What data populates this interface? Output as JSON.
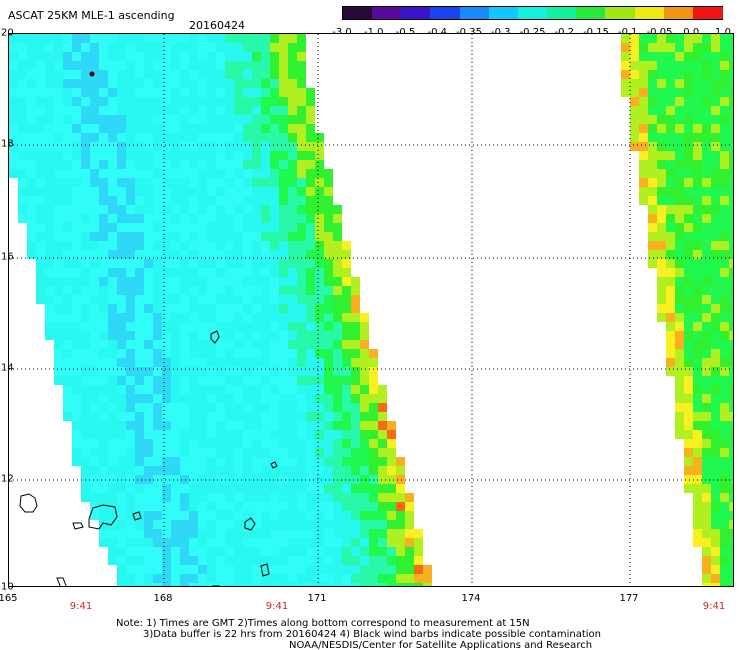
{
  "header": {
    "title": "ASCAT 25KM MLE-1 ascending",
    "date": "20160424"
  },
  "colorbar": {
    "ticks": [
      "-3.0",
      "-1.0",
      "-0.5",
      "-0.4",
      "-0.35",
      "-0.3",
      "-0.25",
      "-0.2",
      "-0.15",
      "-0.1",
      "-0.05",
      "0.0",
      "1.0"
    ],
    "colors": [
      "#2a0838",
      "#5a0a9a",
      "#3a14c8",
      "#1a42f0",
      "#1a8aff",
      "#14c8ff",
      "#14f0e0",
      "#14f0a0",
      "#28e83c",
      "#a0e814",
      "#f0e814",
      "#f09614",
      "#f01414"
    ]
  },
  "map": {
    "lat_labels": [
      "20",
      "18",
      "16",
      "14",
      "12",
      "10"
    ],
    "lon_labels": [
      "165",
      "168",
      "171",
      "174",
      "177"
    ],
    "time_labels": [
      "9:41",
      "9:41",
      "9:41"
    ],
    "land_color": "#000000",
    "palette": {
      "cyan": "#28f8f0",
      "light_cyan": "#30fcf8",
      "sky": "#30d8f8",
      "blue": "#2898f8",
      "teal_green": "#28f8a8",
      "green": "#20f850",
      "bright_green": "#30f030",
      "yellow_green": "#b0f020",
      "yellow": "#f8f020",
      "orange": "#f8b020",
      "red_orange": "#f86818"
    }
  },
  "footer": {
    "note_line1": "Note: 1) Times are GMT 2)Times along bottom correspond to measurement at 15N",
    "note_line2": "3)Data buffer is 22 hrs from 20160424 4) Black wind barbs indicate possible contamination",
    "note_line3": "NOAA/NESDIS/Center for Satellite Applications and Research"
  }
}
